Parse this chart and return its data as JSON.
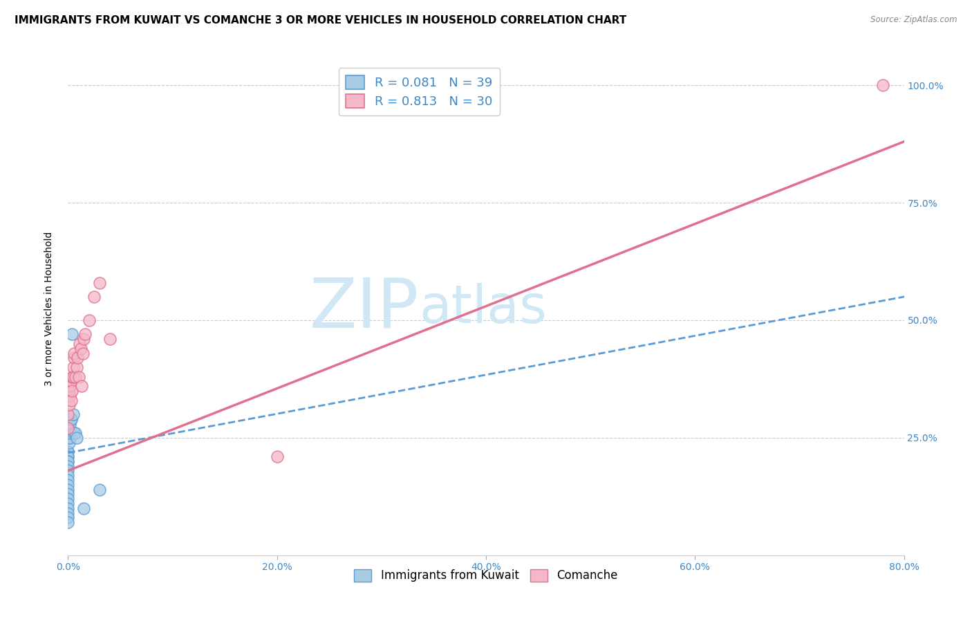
{
  "title": "IMMIGRANTS FROM KUWAIT VS COMANCHE 3 OR MORE VEHICLES IN HOUSEHOLD CORRELATION CHART",
  "source": "Source: ZipAtlas.com",
  "ylabel": "3 or more Vehicles in Household",
  "x_label_blue": "Immigrants from Kuwait",
  "x_label_pink": "Comanche",
  "r_blue": 0.081,
  "n_blue": 39,
  "r_pink": 0.813,
  "n_pink": 30,
  "color_blue": "#a8cce4",
  "color_pink": "#f4b8c8",
  "color_blue_line": "#5b9bd5",
  "color_pink_line": "#e07090",
  "watermark_color": "#d0e8f5",
  "axis_label_color": "#3c87c8",
  "xlim": [
    0,
    0.8
  ],
  "ylim": [
    0,
    1.05
  ],
  "blue_x": [
    0.0,
    0.0,
    0.0,
    0.0,
    0.0,
    0.0,
    0.0,
    0.0,
    0.0,
    0.0,
    0.0,
    0.0,
    0.0,
    0.0,
    0.0,
    0.0,
    0.0,
    0.0,
    0.0,
    0.0,
    0.0,
    0.0,
    0.001,
    0.001,
    0.001,
    0.001,
    0.001,
    0.002,
    0.002,
    0.002,
    0.003,
    0.003,
    0.004,
    0.005,
    0.006,
    0.007,
    0.008,
    0.015,
    0.03
  ],
  "blue_y": [
    0.22,
    0.22,
    0.21,
    0.21,
    0.2,
    0.2,
    0.19,
    0.18,
    0.17,
    0.16,
    0.15,
    0.14,
    0.13,
    0.12,
    0.11,
    0.1,
    0.09,
    0.08,
    0.07,
    0.27,
    0.28,
    0.29,
    0.26,
    0.26,
    0.25,
    0.25,
    0.24,
    0.25,
    0.26,
    0.28,
    0.29,
    0.29,
    0.47,
    0.3,
    0.26,
    0.26,
    0.25,
    0.1,
    0.14
  ],
  "pink_x": [
    0.0,
    0.0,
    0.001,
    0.001,
    0.002,
    0.002,
    0.003,
    0.003,
    0.004,
    0.004,
    0.005,
    0.005,
    0.006,
    0.006,
    0.007,
    0.008,
    0.009,
    0.01,
    0.011,
    0.012,
    0.013,
    0.014,
    0.015,
    0.016,
    0.02,
    0.025,
    0.03,
    0.04,
    0.2,
    0.78
  ],
  "pink_y": [
    0.3,
    0.27,
    0.35,
    0.32,
    0.34,
    0.36,
    0.37,
    0.33,
    0.38,
    0.35,
    0.4,
    0.38,
    0.42,
    0.43,
    0.38,
    0.4,
    0.42,
    0.38,
    0.45,
    0.44,
    0.36,
    0.43,
    0.46,
    0.47,
    0.5,
    0.55,
    0.58,
    0.46,
    0.21,
    1.0
  ],
  "xtick_labels": [
    "0.0%",
    "20.0%",
    "40.0%",
    "60.0%",
    "80.0%"
  ],
  "xtick_values": [
    0.0,
    0.2,
    0.4,
    0.6,
    0.8
  ],
  "ytick_labels": [
    "25.0%",
    "50.0%",
    "75.0%",
    "100.0%"
  ],
  "ytick_values": [
    0.25,
    0.5,
    0.75,
    1.0
  ],
  "title_fontsize": 11,
  "axis_fontsize": 9,
  "tick_fontsize": 10,
  "legend_fontsize": 13
}
